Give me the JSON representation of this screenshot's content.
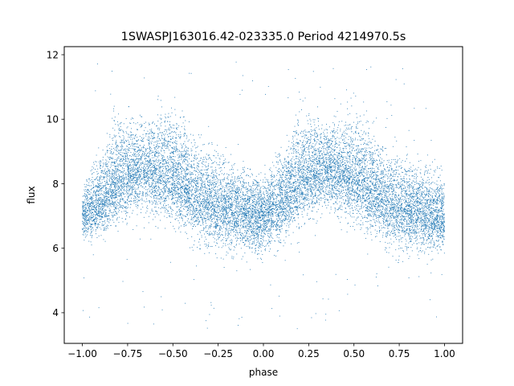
{
  "chart_data": {
    "type": "scatter",
    "title": "1SWASPJ163016.42-023335.0 Period 4214970.5s",
    "xlabel": "phase",
    "ylabel": "flux",
    "xlim": [
      -1.1,
      1.1
    ],
    "ylim": [
      3.05,
      12.25
    ],
    "xticks": [
      -1.0,
      -0.75,
      -0.5,
      -0.25,
      0.0,
      0.25,
      0.5,
      0.75,
      1.0
    ],
    "xtick_labels": [
      "−1.00",
      "−0.75",
      "−0.50",
      "−0.25",
      "0.00",
      "0.25",
      "0.50",
      "0.75",
      "1.00"
    ],
    "yticks": [
      4,
      6,
      8,
      10,
      12
    ],
    "ytick_labels": [
      "4",
      "6",
      "8",
      "10",
      "12"
    ],
    "grid": false,
    "marker_color": "#1f77b4",
    "series": [
      {
        "x_range": [
          -1.0,
          1.0
        ],
        "approx_point_count": 14000,
        "trend_phase": [
          -1.0,
          -0.9,
          -0.8,
          -0.7,
          -0.65,
          -0.6,
          -0.5,
          -0.4,
          -0.3,
          -0.2,
          -0.1,
          0.0,
          0.1,
          0.2,
          0.3,
          0.35,
          0.4,
          0.5,
          0.6,
          0.7,
          0.8,
          0.9,
          1.0
        ],
        "trend_flux": [
          7.0,
          7.5,
          8.1,
          8.4,
          8.5,
          8.4,
          8.2,
          7.8,
          7.4,
          7.2,
          7.1,
          7.0,
          7.5,
          8.1,
          8.4,
          8.5,
          8.4,
          8.2,
          7.8,
          7.4,
          7.2,
          7.1,
          7.0
        ],
        "upper_envelope_flux": [
          8.0,
          9.2,
          10.4,
          10.2,
          10.0,
          10.4,
          10.6,
          9.8,
          9.3,
          8.9,
          8.7,
          8.3,
          9.3,
          10.5,
          10.3,
          10.0,
          10.4,
          10.5,
          9.9,
          9.3,
          8.9,
          8.7,
          8.5
        ],
        "lower_envelope_flux": [
          6.1,
          6.2,
          6.6,
          6.9,
          6.9,
          6.8,
          6.6,
          6.2,
          5.8,
          5.7,
          5.6,
          5.6,
          6.0,
          6.6,
          6.9,
          6.9,
          6.8,
          6.6,
          6.2,
          5.8,
          5.7,
          5.6,
          5.8
        ],
        "outlier_flux_range": [
          3.5,
          12.0
        ]
      }
    ]
  }
}
